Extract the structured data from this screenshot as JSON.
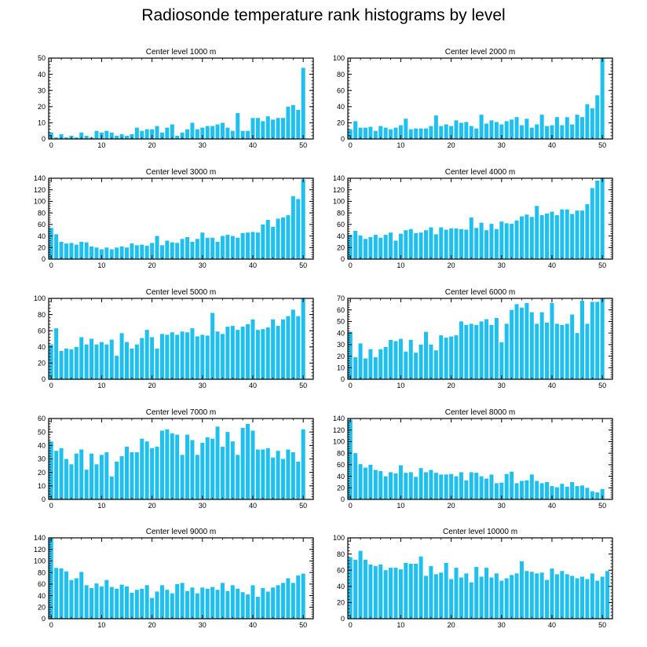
{
  "page": {
    "title": "Radiosonde temperature rank histograms by level"
  },
  "colors": {
    "bar": "#1ec0f0",
    "axis": "#000000"
  },
  "chart_data": [
    {
      "type": "bar",
      "title": "Center level 1000 m",
      "ylim": [
        0,
        50
      ],
      "yticks": [
        0,
        10,
        20,
        30,
        40,
        50
      ],
      "xlim": [
        -0.5,
        52
      ],
      "xticks": [
        0,
        10,
        20,
        30,
        40,
        50
      ],
      "values": [
        4,
        1,
        3,
        1,
        2,
        1,
        4,
        2,
        1,
        5,
        4,
        5,
        4,
        2,
        3,
        2,
        3,
        7,
        5,
        6,
        6,
        8,
        4,
        7,
        9,
        2,
        4,
        6,
        10,
        6,
        7,
        8,
        8,
        9,
        10,
        7,
        5,
        16,
        5,
        5,
        13,
        13,
        11,
        14,
        12,
        13,
        13,
        20,
        21,
        18,
        44
      ]
    },
    {
      "type": "bar",
      "title": "Center level 2000 m",
      "ylim": [
        0,
        100
      ],
      "yticks": [
        0,
        20,
        40,
        60,
        80,
        100
      ],
      "xlim": [
        -0.5,
        52
      ],
      "xticks": [
        0,
        10,
        20,
        30,
        40,
        50
      ],
      "values": [
        12,
        22,
        14,
        14,
        15,
        10,
        16,
        14,
        12,
        14,
        17,
        25,
        12,
        13,
        13,
        13,
        16,
        29,
        16,
        18,
        16,
        23,
        20,
        21,
        16,
        13,
        30,
        19,
        23,
        21,
        18,
        22,
        24,
        27,
        17,
        25,
        14,
        18,
        30,
        16,
        17,
        27,
        17,
        27,
        18,
        30,
        27,
        43,
        38,
        54,
        100
      ]
    },
    {
      "type": "bar",
      "title": "Center level 3000 m",
      "ylim": [
        0,
        140
      ],
      "yticks": [
        0,
        20,
        40,
        60,
        80,
        100,
        120,
        140
      ],
      "xlim": [
        -0.5,
        52
      ],
      "xticks": [
        0,
        10,
        20,
        30,
        40,
        50
      ],
      "values": [
        54,
        43,
        30,
        27,
        28,
        25,
        30,
        29,
        22,
        20,
        17,
        20,
        17,
        20,
        22,
        20,
        27,
        24,
        25,
        23,
        28,
        40,
        24,
        32,
        29,
        28,
        35,
        38,
        30,
        35,
        46,
        37,
        37,
        30,
        40,
        42,
        40,
        37,
        45,
        46,
        47,
        46,
        60,
        68,
        56,
        70,
        72,
        76,
        109,
        104,
        138
      ]
    },
    {
      "type": "bar",
      "title": "Center level 4000 m",
      "ylim": [
        0,
        140
      ],
      "yticks": [
        0,
        20,
        40,
        60,
        80,
        100,
        120,
        140
      ],
      "xlim": [
        -0.5,
        52
      ],
      "xticks": [
        0,
        10,
        20,
        30,
        40,
        50
      ],
      "values": [
        42,
        49,
        41,
        35,
        38,
        42,
        37,
        42,
        46,
        32,
        44,
        50,
        52,
        45,
        46,
        50,
        55,
        43,
        55,
        51,
        53,
        53,
        52,
        51,
        72,
        54,
        63,
        50,
        61,
        52,
        65,
        62,
        61,
        67,
        74,
        77,
        73,
        92,
        76,
        79,
        82,
        76,
        86,
        86,
        78,
        84,
        84,
        95,
        123,
        136,
        140
      ]
    },
    {
      "type": "bar",
      "title": "Center level 5000 m",
      "ylim": [
        0,
        100
      ],
      "yticks": [
        0,
        20,
        40,
        60,
        80,
        100
      ],
      "xlim": [
        -0.5,
        52
      ],
      "xticks": [
        0,
        10,
        20,
        30,
        40,
        50
      ],
      "values": [
        43,
        63,
        35,
        38,
        37,
        40,
        52,
        43,
        50,
        43,
        46,
        43,
        49,
        29,
        57,
        46,
        38,
        43,
        51,
        61,
        52,
        38,
        56,
        55,
        58,
        55,
        59,
        58,
        63,
        53,
        55,
        54,
        82,
        59,
        56,
        65,
        66,
        61,
        65,
        68,
        74,
        61,
        62,
        64,
        74,
        66,
        74,
        78,
        86,
        78,
        100
      ]
    },
    {
      "type": "bar",
      "title": "Center level 6000 m",
      "ylim": [
        0,
        70
      ],
      "yticks": [
        0,
        10,
        20,
        30,
        40,
        50,
        60,
        70
      ],
      "xlim": [
        -0.5,
        52
      ],
      "xticks": [
        0,
        10,
        20,
        30,
        40,
        50
      ],
      "values": [
        41,
        19,
        31,
        18,
        26,
        19,
        26,
        28,
        34,
        33,
        35,
        24,
        34,
        23,
        30,
        41,
        30,
        25,
        38,
        36,
        37,
        38,
        50,
        47,
        48,
        47,
        50,
        52,
        47,
        53,
        32,
        48,
        60,
        65,
        62,
        66,
        58,
        48,
        58,
        49,
        66,
        48,
        47,
        48,
        56,
        40,
        68,
        48,
        67,
        67,
        70
      ]
    },
    {
      "type": "bar",
      "title": "Center level 7000 m",
      "ylim": [
        0,
        60
      ],
      "yticks": [
        0,
        10,
        20,
        30,
        40,
        50,
        60
      ],
      "xlim": [
        -0.5,
        52
      ],
      "xticks": [
        0,
        10,
        20,
        30,
        40,
        50
      ],
      "values": [
        43,
        36,
        38,
        30,
        26,
        34,
        37,
        22,
        34,
        26,
        33,
        35,
        17,
        28,
        32,
        39,
        35,
        35,
        45,
        43,
        38,
        39,
        51,
        52,
        49,
        48,
        33,
        48,
        44,
        33,
        42,
        46,
        45,
        54,
        39,
        50,
        43,
        33,
        53,
        56,
        51,
        37,
        37,
        38,
        31,
        36,
        30,
        37,
        35,
        28,
        52
      ]
    },
    {
      "type": "bar",
      "title": "Center level 8000 m",
      "ylim": [
        0,
        140
      ],
      "yticks": [
        0,
        20,
        40,
        60,
        80,
        100,
        120,
        140
      ],
      "xlim": [
        -0.5,
        52
      ],
      "xticks": [
        0,
        10,
        20,
        30,
        40,
        50
      ],
      "values": [
        138,
        80,
        61,
        55,
        60,
        51,
        49,
        40,
        47,
        45,
        59,
        46,
        47,
        39,
        54,
        47,
        51,
        46,
        43,
        43,
        44,
        40,
        47,
        33,
        47,
        46,
        40,
        36,
        43,
        28,
        29,
        44,
        48,
        28,
        32,
        33,
        43,
        32,
        28,
        30,
        23,
        21,
        27,
        22,
        30,
        23,
        24,
        20,
        14,
        12,
        18
      ]
    },
    {
      "type": "bar",
      "title": "Center level 9000 m",
      "ylim": [
        0,
        140
      ],
      "yticks": [
        0,
        20,
        40,
        60,
        80,
        100,
        120,
        140
      ],
      "xlim": [
        -0.5,
        52
      ],
      "xticks": [
        0,
        10,
        20,
        30,
        40,
        50
      ],
      "values": [
        140,
        88,
        87,
        82,
        67,
        70,
        81,
        58,
        53,
        61,
        56,
        67,
        55,
        52,
        59,
        56,
        45,
        50,
        52,
        58,
        36,
        47,
        58,
        50,
        44,
        60,
        62,
        48,
        54,
        44,
        54,
        52,
        55,
        50,
        62,
        48,
        58,
        52,
        46,
        42,
        58,
        38,
        53,
        47,
        54,
        58,
        62,
        70,
        62,
        75,
        78
      ]
    },
    {
      "type": "bar",
      "title": "Center level 10000 m",
      "ylim": [
        0,
        100
      ],
      "yticks": [
        0,
        20,
        40,
        60,
        80,
        100
      ],
      "xlim": [
        -0.5,
        52
      ],
      "xticks": [
        0,
        10,
        20,
        30,
        40,
        50
      ],
      "values": [
        76,
        73,
        84,
        73,
        67,
        65,
        67,
        60,
        63,
        63,
        61,
        69,
        68,
        68,
        77,
        53,
        65,
        55,
        57,
        69,
        49,
        63,
        51,
        56,
        45,
        64,
        52,
        63,
        51,
        56,
        47,
        50,
        54,
        56,
        71,
        59,
        58,
        56,
        57,
        48,
        62,
        55,
        59,
        55,
        53,
        50,
        52,
        49,
        56,
        47,
        52,
        59
      ]
    }
  ]
}
